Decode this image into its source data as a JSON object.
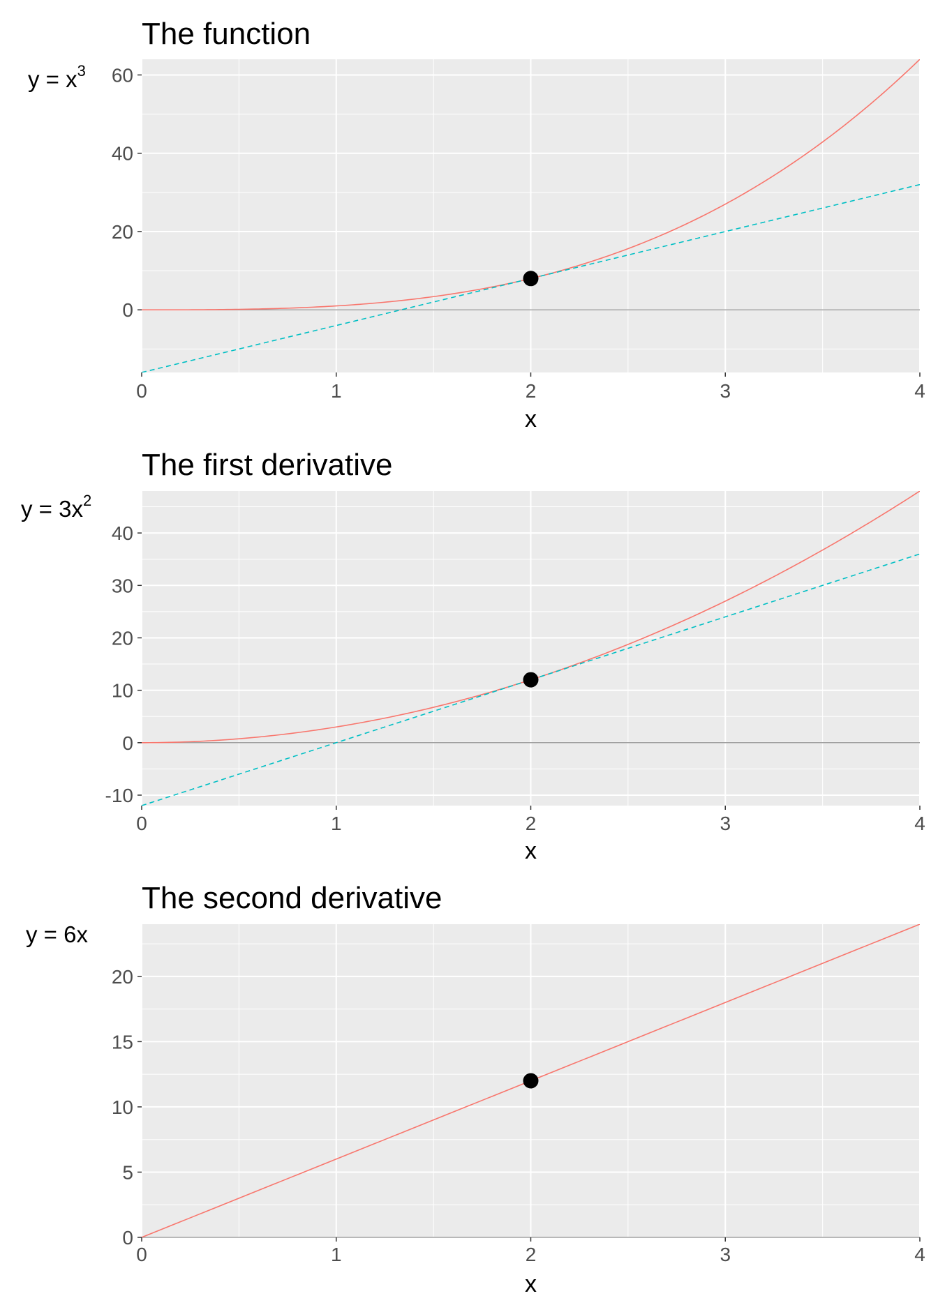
{
  "chart_data": [
    {
      "type": "line",
      "title": "The function",
      "ylabel_base": "y = x",
      "ylabel_sup": "3",
      "xlabel": "x",
      "xlim": [
        0,
        4
      ],
      "ylim": [
        -16,
        64
      ],
      "xticks": [
        0,
        1,
        2,
        3,
        4
      ],
      "yticks": [
        0,
        20,
        40,
        60
      ],
      "series": [
        {
          "kind": "curve",
          "formula": "x^3",
          "color": "#F8766D",
          "dash": "solid"
        },
        {
          "kind": "tangent",
          "formula": "12x - 16",
          "color": "#00BFC4",
          "dash": "dashed"
        }
      ],
      "point": {
        "x": 2,
        "y": 8
      }
    },
    {
      "type": "line",
      "title": "The first derivative",
      "ylabel_base": "y = 3x",
      "ylabel_sup": "2",
      "xlabel": "x",
      "xlim": [
        0,
        4
      ],
      "ylim": [
        -12,
        48
      ],
      "xticks": [
        0,
        1,
        2,
        3,
        4
      ],
      "yticks": [
        -10,
        0,
        10,
        20,
        30,
        40
      ],
      "series": [
        {
          "kind": "curve",
          "formula": "3x^2",
          "color": "#F8766D",
          "dash": "solid"
        },
        {
          "kind": "tangent",
          "formula": "12x - 12",
          "color": "#00BFC4",
          "dash": "dashed"
        }
      ],
      "point": {
        "x": 2,
        "y": 12
      }
    },
    {
      "type": "line",
      "title": "The second derivative",
      "ylabel_base": "y = 6x",
      "ylabel_sup": "",
      "xlabel": "x",
      "xlim": [
        0,
        4
      ],
      "ylim": [
        0,
        24
      ],
      "xticks": [
        0,
        1,
        2,
        3,
        4
      ],
      "yticks": [
        0,
        5,
        10,
        15,
        20
      ],
      "series": [
        {
          "kind": "curve",
          "formula": "6x",
          "color": "#F8766D",
          "dash": "solid"
        }
      ],
      "point": {
        "x": 2,
        "y": 12
      }
    }
  ]
}
